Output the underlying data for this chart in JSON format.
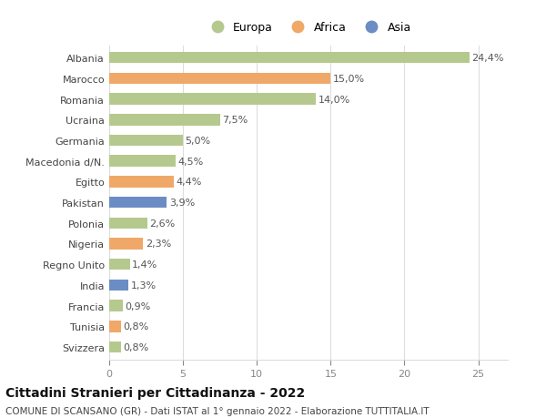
{
  "countries": [
    "Albania",
    "Marocco",
    "Romania",
    "Ucraina",
    "Germania",
    "Macedonia d/N.",
    "Egitto",
    "Pakistan",
    "Polonia",
    "Nigeria",
    "Regno Unito",
    "India",
    "Francia",
    "Tunisia",
    "Svizzera"
  ],
  "values": [
    24.4,
    15.0,
    14.0,
    7.5,
    5.0,
    4.5,
    4.4,
    3.9,
    2.6,
    2.3,
    1.4,
    1.3,
    0.9,
    0.8,
    0.8
  ],
  "labels": [
    "24,4%",
    "15,0%",
    "14,0%",
    "7,5%",
    "5,0%",
    "4,5%",
    "4,4%",
    "3,9%",
    "2,6%",
    "2,3%",
    "1,4%",
    "1,3%",
    "0,9%",
    "0,8%",
    "0,8%"
  ],
  "continents": [
    "Europa",
    "Africa",
    "Europa",
    "Europa",
    "Europa",
    "Europa",
    "Africa",
    "Asia",
    "Europa",
    "Africa",
    "Europa",
    "Asia",
    "Europa",
    "Africa",
    "Europa"
  ],
  "colors": {
    "Europa": "#b5c98e",
    "Africa": "#f0a868",
    "Asia": "#6b8dc4"
  },
  "legend_order": [
    "Europa",
    "Africa",
    "Asia"
  ],
  "xlim": [
    0,
    27
  ],
  "xticks": [
    0,
    5,
    10,
    15,
    20,
    25
  ],
  "title": "Cittadini Stranieri per Cittadinanza - 2022",
  "subtitle": "COMUNE DI SCANSANO (GR) - Dati ISTAT al 1° gennaio 2022 - Elaborazione TUTTITALIA.IT",
  "bg_color": "#ffffff",
  "grid_color": "#dddddd",
  "bar_height": 0.55,
  "label_fontsize": 8,
  "tick_fontsize": 8,
  "title_fontsize": 10,
  "subtitle_fontsize": 7.5
}
